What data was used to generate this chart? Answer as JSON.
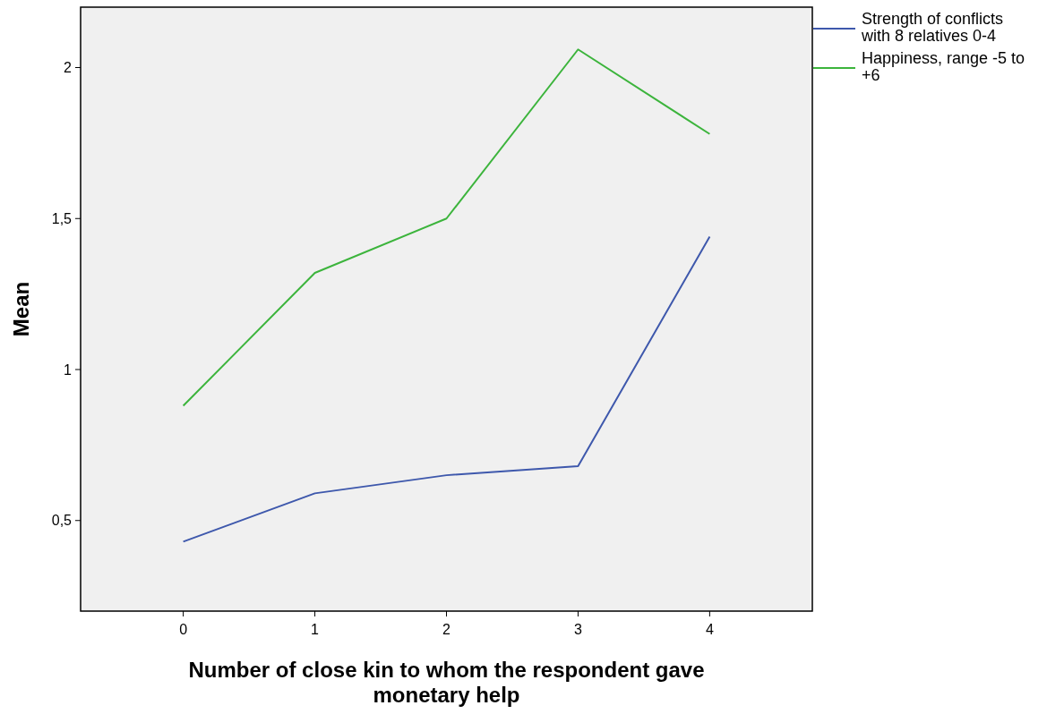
{
  "chart_data": {
    "type": "line",
    "xlabel": "Number of close kin to whom the respondent gave monetary help",
    "ylabel": "Mean",
    "x": [
      0,
      1,
      2,
      3,
      4
    ],
    "series": [
      {
        "name": "Strength of conflicts with 8 relatives 0-4",
        "color": "#3e58ac",
        "values": [
          0.43,
          0.59,
          0.65,
          0.68,
          1.44
        ]
      },
      {
        "name": "Happiness, range -5 to +6",
        "color": "#3cb43c",
        "values": [
          0.88,
          1.32,
          1.5,
          2.06,
          1.78
        ]
      }
    ],
    "xlim": [
      -0.78,
      4.78
    ],
    "xticks": [
      0,
      1,
      2,
      3,
      4
    ],
    "ylim": [
      0.2,
      2.2
    ],
    "yticks": [
      {
        "value": 0.5,
        "label": "0,5"
      },
      1,
      {
        "value": 1.5,
        "label": "1,5"
      },
      2
    ],
    "grid": false,
    "legend": "top right",
    "marker": "none",
    "line_style": "solid"
  }
}
